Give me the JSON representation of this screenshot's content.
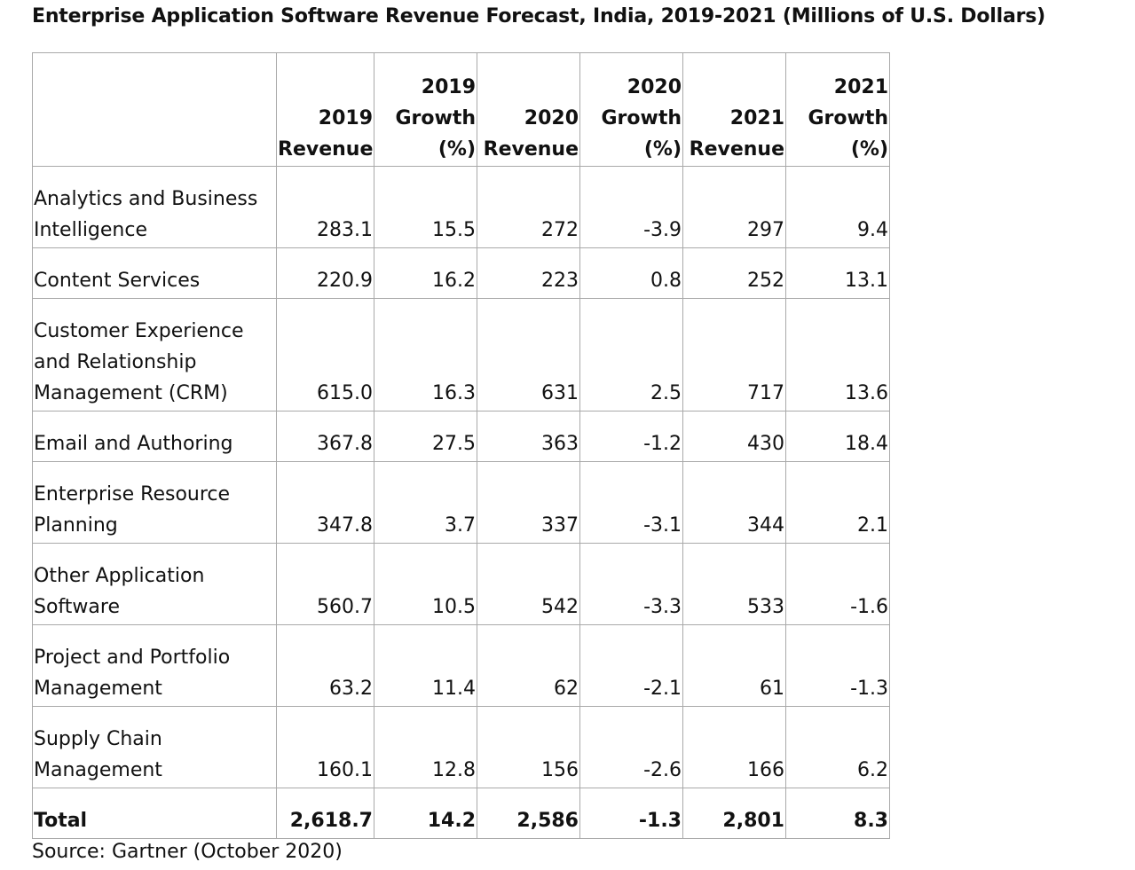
{
  "title": "Enterprise Application Software Revenue Forecast, India, 2019-2021 (Millions of U.S. Dollars)",
  "source": "Source: Gartner (October 2020)",
  "chart_data": {
    "type": "table",
    "title": "Enterprise Application Software Revenue Forecast, India, 2019-2021 (Millions of U.S. Dollars)",
    "columns": [
      {
        "label": "",
        "lines": []
      },
      {
        "label": "2019 Revenue",
        "lines": [
          "2019",
          "Revenue"
        ]
      },
      {
        "label": "2019 Growth (%)",
        "lines": [
          "2019",
          "Growth",
          "(%)"
        ]
      },
      {
        "label": "2020 Revenue",
        "lines": [
          "2020",
          "Revenue"
        ]
      },
      {
        "label": "2020 Growth (%)",
        "lines": [
          "2020",
          "Growth",
          "(%)"
        ]
      },
      {
        "label": "2021 Revenue",
        "lines": [
          "2021",
          "Revenue"
        ]
      },
      {
        "label": "2021 Growth (%)",
        "lines": [
          "2021",
          "Growth",
          "(%)"
        ]
      }
    ],
    "rows": [
      {
        "label": "Analytics and Business Intelligence",
        "label_lines": [
          "Analytics and Business",
          "Intelligence"
        ],
        "values": [
          "283.1",
          "15.5",
          "272",
          "-3.9",
          "297",
          "9.4"
        ]
      },
      {
        "label": "Content Services",
        "label_lines": [
          "Content Services"
        ],
        "values": [
          "220.9",
          "16.2",
          "223",
          "0.8",
          "252",
          "13.1"
        ]
      },
      {
        "label": "Customer Experience and Relationship Management (CRM)",
        "label_lines": [
          "Customer Experience",
          "and Relationship",
          "Management (CRM)"
        ],
        "values": [
          "615.0",
          "16.3",
          "631",
          "2.5",
          "717",
          "13.6"
        ]
      },
      {
        "label": "Email and Authoring",
        "label_lines": [
          "Email and Authoring"
        ],
        "values": [
          "367.8",
          "27.5",
          "363",
          "-1.2",
          "430",
          "18.4"
        ]
      },
      {
        "label": "Enterprise Resource Planning",
        "label_lines": [
          "Enterprise Resource",
          "Planning"
        ],
        "values": [
          "347.8",
          "3.7",
          "337",
          "-3.1",
          "344",
          "2.1"
        ]
      },
      {
        "label": "Other Application Software",
        "label_lines": [
          "Other Application",
          "Software"
        ],
        "values": [
          "560.7",
          "10.5",
          "542",
          "-3.3",
          "533",
          "-1.6"
        ]
      },
      {
        "label": "Project and Portfolio Management",
        "label_lines": [
          "Project and Portfolio",
          "Management"
        ],
        "values": [
          "63.2",
          "11.4",
          "62",
          "-2.1",
          "61",
          "-1.3"
        ]
      },
      {
        "label": "Supply Chain Management",
        "label_lines": [
          "Supply Chain",
          "Management"
        ],
        "values": [
          "160.1",
          "12.8",
          "156",
          "-2.6",
          "166",
          "6.2"
        ]
      }
    ],
    "total": {
      "label": "Total",
      "values": [
        "2,618.7",
        "14.2",
        "2,586",
        "-1.3",
        "2,801",
        "8.3"
      ]
    }
  }
}
